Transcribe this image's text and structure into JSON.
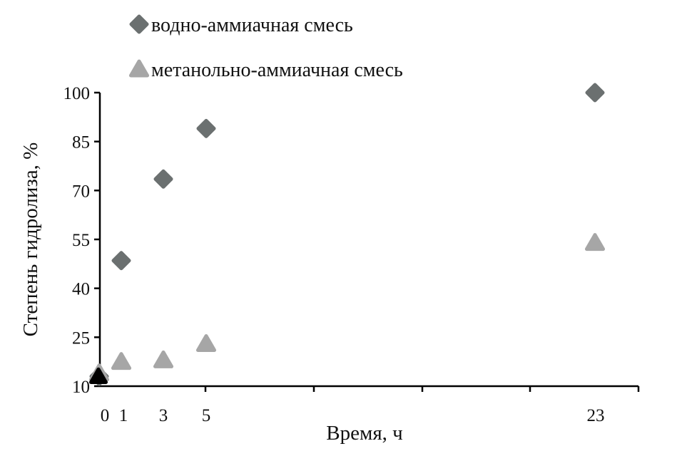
{
  "chart_data": {
    "type": "scatter",
    "title": "",
    "xlabel": "Время, ч",
    "ylabel": "Степень гидролиза, %",
    "xlim": [
      0,
      25
    ],
    "ylim": [
      10,
      100
    ],
    "x_ticks": [
      0,
      1,
      3,
      5,
      23
    ],
    "y_ticks": [
      10,
      25,
      40,
      55,
      70,
      85,
      100
    ],
    "grid": false,
    "legend_position": "top-left",
    "series": [
      {
        "name": "водно-аммиачная смесь",
        "marker": "diamond",
        "color": "#6b7070",
        "points": [
          {
            "x": 0,
            "y": 13
          },
          {
            "x": 1,
            "y": 48.5
          },
          {
            "x": 3,
            "y": 73.5
          },
          {
            "x": 5,
            "y": 89
          },
          {
            "x": 23,
            "y": 100
          }
        ]
      },
      {
        "name": "метанольно-аммиачная смесь",
        "marker": "triangle",
        "color": "#a6a6a6",
        "points": [
          {
            "x": 0,
            "y": 14
          },
          {
            "x": 1,
            "y": 17.5
          },
          {
            "x": 3,
            "y": 18
          },
          {
            "x": 5,
            "y": 23
          },
          {
            "x": 23,
            "y": 54
          }
        ]
      }
    ],
    "extra_points": [
      {
        "x": 0,
        "y": 13,
        "marker": "triangle",
        "color": "#000000"
      }
    ]
  }
}
